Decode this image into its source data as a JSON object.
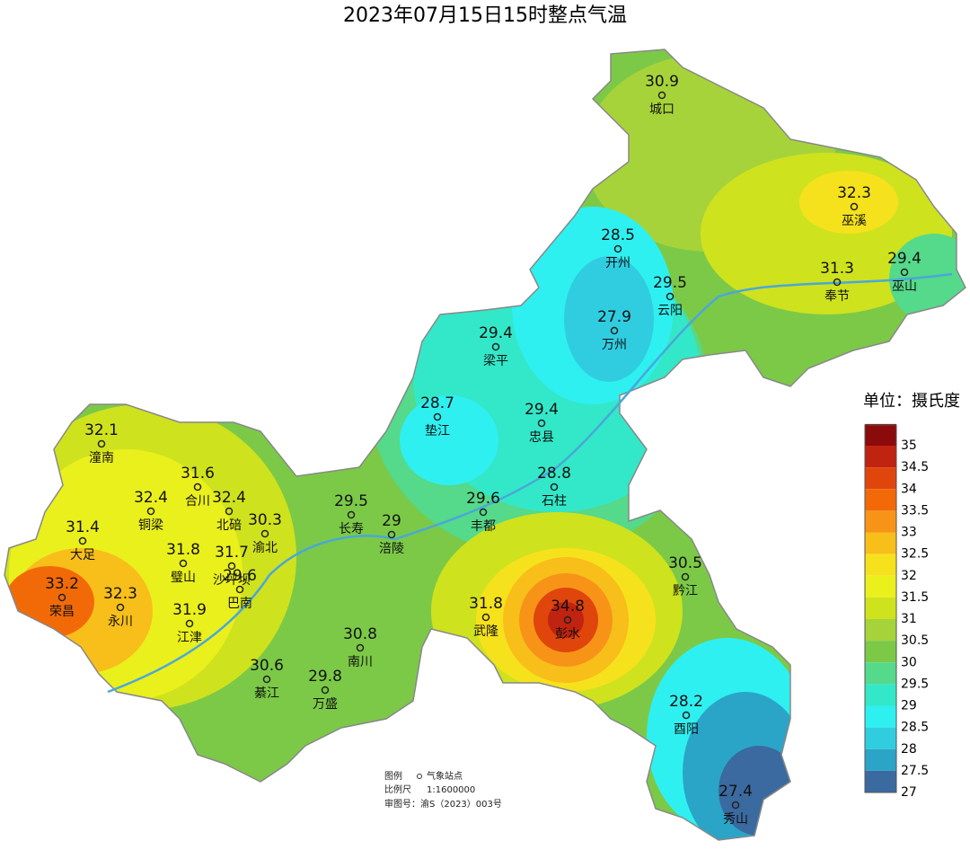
{
  "title": "2023年07月15日15时整点气温",
  "stations": [
    {
      "name": "城口",
      "value": 30.9
    },
    {
      "name": "巫溪",
      "value": 32.3
    },
    {
      "name": "开州",
      "value": 28.5
    },
    {
      "name": "云阳",
      "value": 29.5
    },
    {
      "name": "奉节",
      "value": 31.3
    },
    {
      "name": "巫山",
      "value": 29.4
    },
    {
      "name": "万州",
      "value": 27.9
    },
    {
      "name": "梁平",
      "value": 29.4
    },
    {
      "name": "垫江",
      "value": 28.7
    },
    {
      "name": "忠县",
      "value": 29.4
    },
    {
      "name": "潼南",
      "value": 32.1
    },
    {
      "name": "石柱",
      "value": 28.8
    },
    {
      "name": "合川",
      "value": 31.6
    },
    {
      "name": "铜梁",
      "value": 32.4
    },
    {
      "name": "北碚",
      "value": 32.4
    },
    {
      "name": "长寿",
      "value": 29.5
    },
    {
      "name": "涪陵",
      "value": 29
    },
    {
      "name": "丰都",
      "value": 29.6
    },
    {
      "name": "渝北",
      "value": 30.3
    },
    {
      "name": "大足",
      "value": 31.4
    },
    {
      "name": "沙坪坝",
      "value": 31.7
    },
    {
      "name": "璧山",
      "value": 31.8
    },
    {
      "name": "黔江",
      "value": 30.5
    },
    {
      "name": "荣昌",
      "value": 33.2
    },
    {
      "name": "永川",
      "value": 32.3
    },
    {
      "name": "巴南",
      "value": 29.6
    },
    {
      "name": "江津",
      "value": 31.9
    },
    {
      "name": "武隆",
      "value": 31.8
    },
    {
      "name": "彭水",
      "value": 34.8
    },
    {
      "name": "南川",
      "value": 30.8
    },
    {
      "name": "綦江",
      "value": 30.6
    },
    {
      "name": "万盛",
      "value": 29.8
    },
    {
      "name": "酉阳",
      "value": 28.2
    },
    {
      "name": "秀山",
      "value": 27.4
    }
  ],
  "legend": {
    "title": "单位：摄氏度",
    "ticks": [
      35,
      34.5,
      34,
      33.5,
      33,
      32.5,
      32,
      31.5,
      31,
      30.5,
      30,
      29.5,
      29,
      28.5,
      28,
      27.5,
      27
    ],
    "colors": [
      "#8b0a0a",
      "#c0230f",
      "#e0450c",
      "#f26a08",
      "#f79418",
      "#f8be1a",
      "#f6e21c",
      "#eaf01c",
      "#cfe21e",
      "#a7d33a",
      "#7cc947",
      "#55d98a",
      "#33e8c8",
      "#2ff0f0",
      "#30cde0",
      "#2aa5c8",
      "#3a6aa0"
    ]
  },
  "notes": {
    "legend_label": "图例",
    "station_label": "气象站点",
    "scale_label": "比例尺",
    "scale": "1:1600000",
    "approval": "审图号：渝S（2023）003号"
  }
}
